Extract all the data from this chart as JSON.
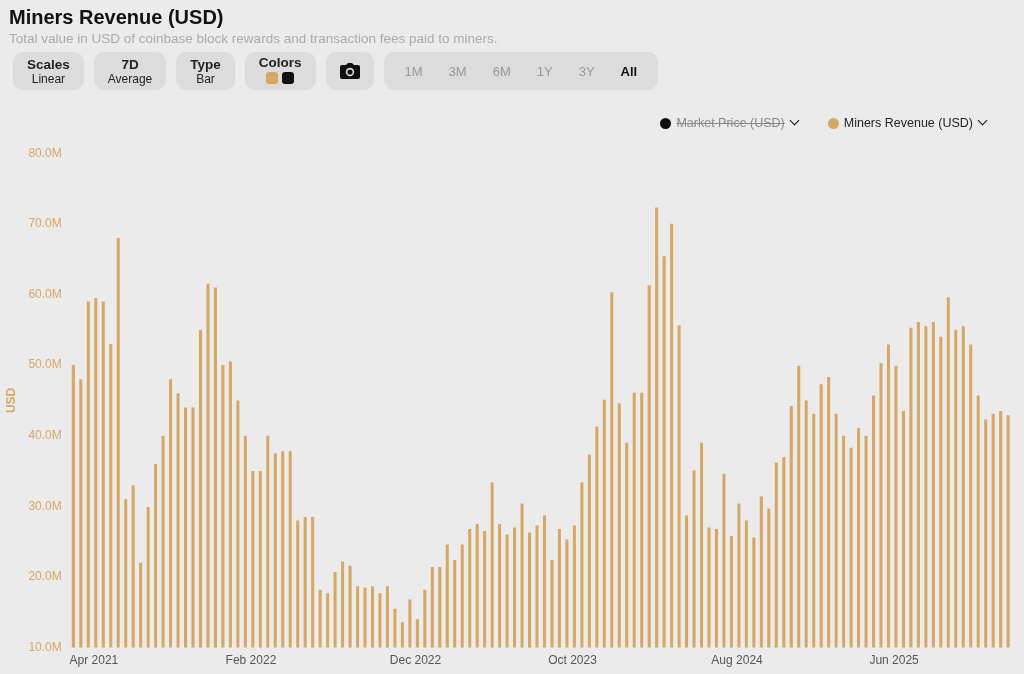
{
  "chart_data": {
    "type": "bar",
    "title": "Miners Revenue (USD)",
    "subtitle": "Total value in USD of coinbase block rewards and transaction fees paid to miners.",
    "annotations": [
      "Scales\nLinear",
      "7D\nAverage",
      "Type\nBar",
      "Colors",
      "1M",
      "3M",
      "6M",
      "1Y",
      "3Y",
      "All"
    ],
    "ylabel": "USD",
    "legend": "top right",
    "grid": false,
    "ylim": [
      10,
      80
    ],
    "yticks": [
      {
        "value": 10,
        "label": "10.0M"
      },
      {
        "value": 20,
        "label": "20.0M"
      },
      {
        "value": 30,
        "label": "30.0M"
      },
      {
        "value": 40,
        "label": "40.0M"
      },
      {
        "value": 50,
        "label": "50.0M"
      },
      {
        "value": 60,
        "label": "60.0M"
      },
      {
        "value": 70,
        "label": "70.0M"
      },
      {
        "value": 80,
        "label": "80.0M"
      }
    ],
    "categories": [
      null,
      null,
      null,
      "Apr 2021",
      null,
      null,
      null,
      null,
      null,
      null,
      null,
      null,
      null,
      null,
      null,
      null,
      null,
      null,
      null,
      null,
      null,
      null,
      null,
      null,
      "Feb 2022",
      null,
      null,
      null,
      null,
      null,
      null,
      null,
      null,
      null,
      null,
      null,
      null,
      null,
      null,
      null,
      null,
      null,
      null,
      null,
      null,
      null,
      "Dec 2022",
      null,
      null,
      null,
      null,
      null,
      null,
      null,
      null,
      null,
      null,
      null,
      null,
      null,
      null,
      null,
      null,
      null,
      null,
      null,
      null,
      "Oct 2023",
      null,
      null,
      null,
      null,
      null,
      null,
      null,
      null,
      null,
      null,
      null,
      null,
      null,
      null,
      null,
      null,
      null,
      null,
      null,
      null,
      null,
      "Aug 2024",
      null,
      null,
      null,
      null,
      null,
      null,
      null,
      null,
      null,
      null,
      null,
      null,
      null,
      null,
      null,
      null,
      null,
      null,
      null,
      null,
      "Jun 2025",
      null,
      null,
      null,
      null,
      null,
      null,
      null,
      null,
      null,
      null,
      null,
      null,
      null,
      null,
      null
    ],
    "series": [
      {
        "name": "Market Price (USD)",
        "color": "#111111",
        "values": [
          null,
          null,
          null,
          null,
          null,
          null,
          null,
          null,
          null,
          null,
          null,
          null,
          null,
          null,
          null,
          null,
          null,
          null,
          null,
          null,
          null,
          null,
          null,
          null,
          null,
          null,
          null,
          null,
          null,
          null,
          null,
          null,
          null,
          null,
          null,
          null,
          null,
          null,
          null,
          null,
          null,
          null,
          null,
          null,
          null,
          null,
          null,
          null,
          null,
          null,
          null,
          null,
          null,
          null,
          null,
          null,
          null,
          null,
          null,
          null,
          null,
          null,
          null,
          null,
          null,
          null,
          null,
          null,
          null,
          null,
          null,
          null,
          null,
          null,
          null,
          null,
          null,
          null,
          null,
          null,
          null,
          null,
          null,
          null,
          null,
          null,
          null,
          null,
          null,
          null,
          null,
          null,
          null,
          null,
          null,
          null,
          null,
          null,
          null,
          null,
          null,
          null,
          null,
          null,
          null,
          null,
          null,
          null,
          null,
          null,
          null,
          null,
          null,
          null,
          null,
          null,
          null,
          null,
          null,
          null,
          null,
          null,
          null,
          null,
          null,
          null
        ]
      },
      {
        "name": "Miners Revenue (USD)",
        "color": "#d6a862",
        "values": [
          50,
          48,
          59,
          59.5,
          59,
          53,
          68,
          31,
          33,
          22,
          29.9,
          36,
          40,
          48,
          46,
          44,
          44,
          55,
          61.5,
          61,
          50,
          50.5,
          45,
          40,
          35,
          35,
          40,
          37.5,
          37.8,
          37.8,
          28,
          28.5,
          28.5,
          18.2,
          17.7,
          20.7,
          22.2,
          21.6,
          18.7,
          18.5,
          18.7,
          17.7,
          18.7,
          15.5,
          13.6,
          16.8,
          14,
          18.2,
          21.4,
          21.4,
          24.6,
          22.4,
          24.6,
          26.8,
          27.5,
          26.5,
          33.4,
          27.5,
          26,
          27,
          30.4,
          26.3,
          27.3,
          28.7,
          22.4,
          26.8,
          25.3,
          27.3,
          33.4,
          37.3,
          41.3,
          45.1,
          60.3,
          44.6,
          39,
          46.1,
          46.1,
          61.3,
          72.3,
          65.4,
          70,
          55.6,
          28.7,
          35.1,
          39,
          27,
          26.8,
          34.6,
          25.8,
          30.4,
          28,
          25.6,
          31.4,
          29.7,
          36.2,
          37,
          44.2,
          49.9,
          45,
          43.1,
          47.3,
          48.3,
          43.1,
          40,
          38.3,
          41.1,
          40,
          45.7,
          50.3,
          52.9,
          49.9,
          43.5,
          55.3,
          56.1,
          55.5,
          56.1,
          54,
          59.6,
          55,
          55.5,
          52.9,
          45.7,
          42.3,
          43.1,
          43.5,
          42.9
        ]
      }
    ]
  }
}
